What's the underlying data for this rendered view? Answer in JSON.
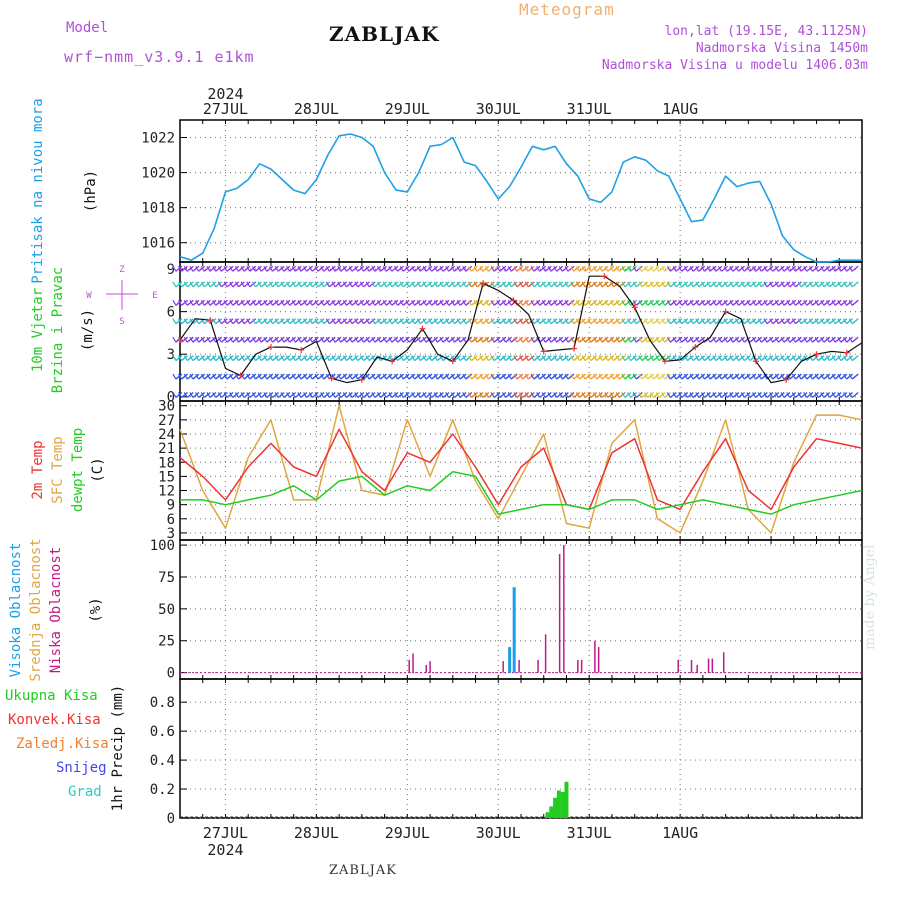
{
  "header": {
    "station": "ZABLJAK",
    "model_label": "Model",
    "model_name": "wrf−nmm_v3.9.1 e1km",
    "meteogram": "Meteogram",
    "coords": "lon,lat (19.15E, 43.1125N)",
    "altitude": "Nadmorska Visina 1450m",
    "model_altitude": "Nadmorska Visina u modelu 1406.03m"
  },
  "footer": {
    "station": "ZABLJAK",
    "credit": "made by Angel"
  },
  "colors": {
    "pressure": "#1fa0e6",
    "temp2m": "#ee3333",
    "sfc": "#e0a640",
    "dewpt": "#22cc22",
    "high": "#1aa0e8",
    "low": "#c01a88",
    "precip": "#22cc22",
    "grid": "#888888"
  },
  "time_axis": {
    "year": "2024",
    "labels": [
      "27JUL",
      "28JUL",
      "29JUL",
      "30JUL",
      "31JUL",
      "1AUG"
    ]
  },
  "chart_data": [
    {
      "type": "line",
      "panel": "pressure",
      "ylabel": [
        "Pritisak na nivou mora",
        "(hPa)"
      ],
      "y_ticks": [
        "1016",
        "1018",
        "1020",
        "1022"
      ],
      "ylim": [
        1014.9,
        1023.0
      ],
      "series": [
        {
          "x": [
            0,
            3,
            6,
            9,
            12,
            15,
            18,
            21,
            24,
            27,
            30,
            33,
            36,
            39,
            42,
            45,
            48,
            51,
            54,
            57,
            60,
            63,
            66,
            69,
            72,
            75,
            78,
            81,
            84,
            87,
            90,
            93,
            96,
            99,
            102,
            105,
            108,
            111,
            114,
            117,
            120,
            123,
            126,
            129,
            132,
            135,
            138,
            141,
            144,
            147,
            150,
            153,
            156,
            159,
            162,
            165,
            168,
            171,
            174,
            177,
            180
          ],
          "y": [
            1015.2,
            1015.0,
            1015.4,
            1016.8,
            1018.9,
            1019.1,
            1019.6,
            1020.5,
            1020.2,
            1019.6,
            1019.0,
            1018.8,
            1019.6,
            1021.0,
            1022.1,
            1022.2,
            1022.0,
            1021.5,
            1020.0,
            1019.0,
            1018.9,
            1020.0,
            1021.5,
            1021.6,
            1022.0,
            1020.6,
            1020.4,
            1019.5,
            1018.5,
            1019.2,
            1020.3,
            1021.5,
            1021.3,
            1021.5,
            1020.5,
            1019.8,
            1018.5,
            1018.3,
            1018.9,
            1020.6,
            1020.9,
            1020.7,
            1020.1,
            1019.8,
            1018.5,
            1017.2,
            1017.3,
            1018.5,
            1019.8,
            1019.2,
            1019.4,
            1019.5,
            1018.2,
            1016.4,
            1015.6,
            1015.2,
            1014.9,
            1014.9,
            1015.0,
            1015.0,
            1015.0
          ]
        }
      ]
    },
    {
      "type": "line",
      "panel": "wind",
      "ylabel": [
        "10m Vjetar",
        "Brzina i Pravac",
        "(m/s)"
      ],
      "compass": {
        "n": "Z",
        "w": "W",
        "e": "E",
        "s": "S"
      },
      "y_ticks": [
        "0",
        "3",
        "6",
        "9"
      ],
      "ylim": [
        -0.3,
        9.5
      ],
      "series": [
        {
          "x": [
            0,
            4,
            8,
            12,
            16,
            20,
            24,
            28,
            32,
            36,
            40,
            44,
            48,
            52,
            56,
            60,
            64,
            68,
            72,
            76,
            80,
            84,
            88,
            92,
            96,
            100,
            104,
            108,
            112,
            116,
            120,
            124,
            128,
            132,
            136,
            140,
            144,
            148,
            152,
            156,
            160,
            164,
            168,
            172,
            176,
            180
          ],
          "y": [
            4.0,
            5.5,
            5.4,
            2.0,
            1.5,
            3.0,
            3.5,
            3.5,
            3.3,
            3.9,
            1.3,
            1.0,
            1.2,
            2.8,
            2.5,
            3.3,
            4.8,
            3.0,
            2.5,
            4.0,
            8.0,
            7.5,
            6.8,
            5.8,
            3.2,
            3.3,
            3.4,
            8.5,
            8.5,
            7.8,
            6.3,
            4.0,
            2.5,
            2.6,
            3.5,
            4.2,
            6.0,
            5.5,
            2.5,
            1.0,
            1.2,
            2.5,
            3.0,
            3.2,
            3.1,
            3.8
          ]
        }
      ]
    },
    {
      "type": "line",
      "panel": "temperature",
      "ylabel": [
        "2m Temp",
        "SFC Temp",
        "dewpt Temp",
        "(C)"
      ],
      "y_ticks": [
        "3",
        "6",
        "9",
        "12",
        "15",
        "18",
        "21",
        "24",
        "27",
        "30"
      ],
      "ylim": [
        1.5,
        31.0
      ],
      "series": [
        {
          "name": "2m Temp",
          "x": [
            0,
            6,
            12,
            18,
            24,
            30,
            36,
            42,
            48,
            54,
            60,
            66,
            72,
            78,
            84,
            90,
            96,
            102,
            108,
            114,
            120,
            126,
            132,
            138,
            144,
            150,
            156,
            162,
            168,
            174,
            180
          ],
          "y": [
            19,
            15,
            10,
            17,
            22,
            17,
            15,
            25,
            16,
            12,
            20,
            18,
            24,
            17,
            9,
            17,
            21,
            9,
            8,
            20,
            23,
            10,
            8,
            16,
            23,
            12,
            8,
            17,
            23,
            22,
            21
          ]
        },
        {
          "name": "SFC Temp",
          "x": [
            0,
            6,
            12,
            18,
            24,
            30,
            36,
            42,
            48,
            54,
            60,
            66,
            72,
            78,
            84,
            90,
            96,
            102,
            108,
            114,
            120,
            126,
            132,
            138,
            144,
            150,
            156,
            162,
            168,
            174,
            180
          ],
          "y": [
            25,
            12,
            4,
            19,
            27,
            10,
            10,
            30,
            12,
            11,
            27,
            15,
            27,
            14,
            6,
            15,
            24,
            5,
            4,
            22,
            27,
            6,
            3,
            14,
            27,
            8,
            3,
            18,
            28,
            28,
            27
          ]
        },
        {
          "name": "dewpt Temp",
          "x": [
            0,
            6,
            12,
            18,
            24,
            30,
            36,
            42,
            48,
            54,
            60,
            66,
            72,
            78,
            84,
            90,
            96,
            102,
            108,
            114,
            120,
            126,
            132,
            138,
            144,
            150,
            156,
            162,
            168,
            174,
            180
          ],
          "y": [
            10,
            10,
            9,
            10,
            11,
            13,
            10,
            14,
            15,
            11,
            13,
            12,
            16,
            15,
            7,
            8,
            9,
            9,
            8,
            10,
            10,
            8,
            9,
            10,
            9,
            8,
            7,
            9,
            10,
            11,
            12
          ]
        }
      ]
    },
    {
      "type": "bar",
      "panel": "clouds",
      "ylabel": [
        "Visoka Oblacnost",
        "Srednja Oblacnost",
        "Niska Oblacnost",
        "(%)"
      ],
      "y_ticks": [
        "0",
        "25",
        "50",
        "75",
        "100"
      ],
      "ylim": [
        -5,
        104
      ],
      "series": [
        {
          "name": "Visoka Oblacnost",
          "x": [
            87,
            88.2
          ],
          "values": [
            20,
            67
          ]
        },
        {
          "name": "Niska Oblacnost",
          "x": [
            60.5,
            61.5,
            65,
            66,
            85.3,
            89.5,
            94.5,
            96.5,
            100.2,
            101.3,
            105,
            106,
            109.5,
            110.5,
            131.5,
            135,
            136.5,
            139.5,
            140.5,
            143.5
          ],
          "values": [
            10,
            15,
            6,
            9,
            9,
            10,
            10,
            30,
            93,
            100,
            10,
            10,
            25,
            20,
            10,
            10,
            6,
            11,
            11,
            16
          ]
        }
      ]
    },
    {
      "type": "bar",
      "panel": "precip",
      "ylabel": [
        "1hr Precip (mm)"
      ],
      "legend": [
        "Ukupna Kisa",
        "Konvek.Kisa",
        "Zaledj.Kisa",
        "Snijeg",
        "Grad"
      ],
      "y_ticks": [
        "0",
        "0.2",
        "0.4",
        "0.6",
        "0.8"
      ],
      "ylim": [
        0,
        0.96
      ],
      "series": [
        {
          "name": "Ukupna Kisa",
          "x": [
            97,
            98,
            99,
            100,
            101,
            102,
            103
          ],
          "values": [
            0.04,
            0.08,
            0.14,
            0.19,
            0.18,
            0.25,
            0.0
          ]
        }
      ]
    }
  ]
}
